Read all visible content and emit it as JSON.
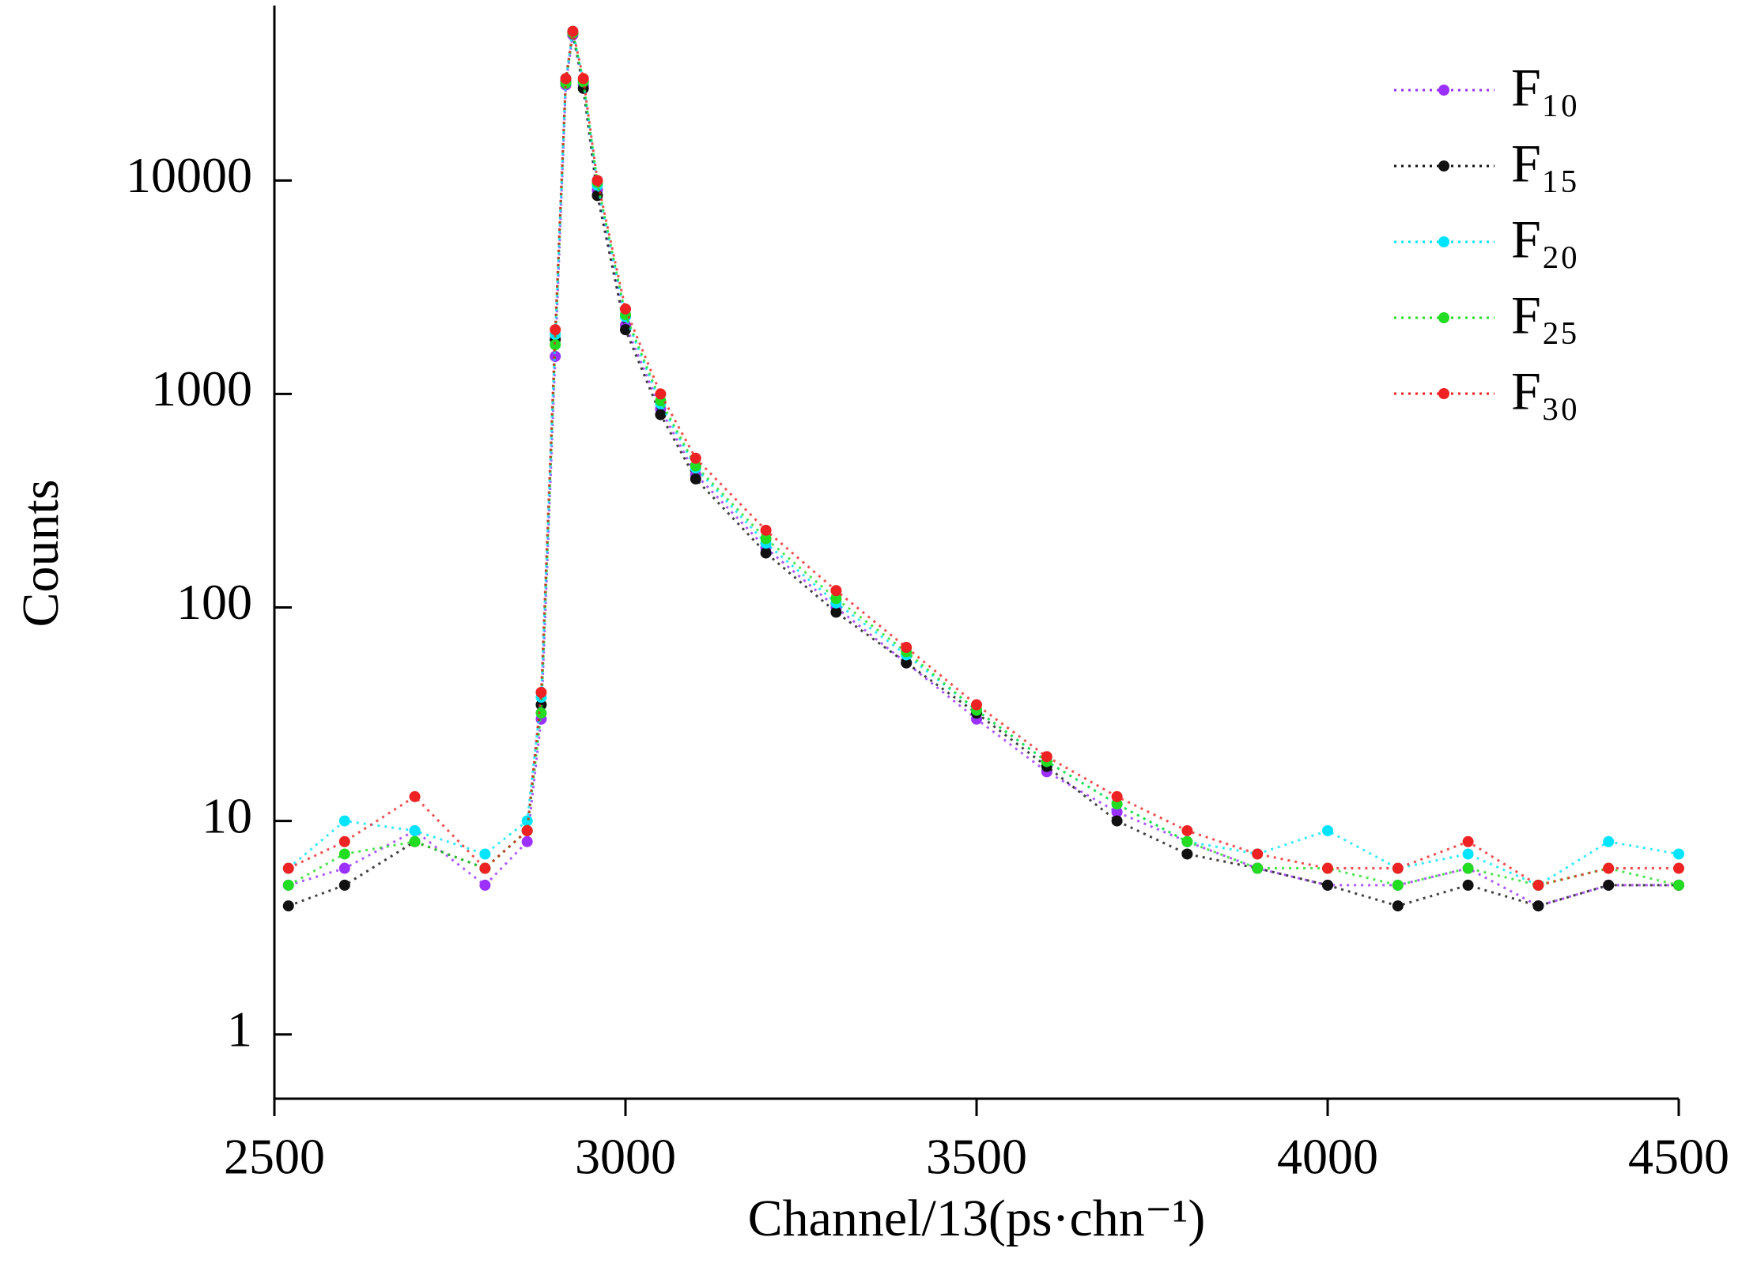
{
  "chart_data": {
    "type": "line",
    "x_label": "Channel/13(ps·chn⁻¹)",
    "y_label": "Counts",
    "x": [
      2520,
      2600,
      2700,
      2800,
      2860,
      2880,
      2900,
      2915,
      2925,
      2940,
      2960,
      3000,
      3050,
      3100,
      3200,
      3300,
      3400,
      3500,
      3600,
      3700,
      3800,
      3900,
      4000,
      4100,
      4200,
      4300,
      4400,
      4500
    ],
    "series": [
      {
        "name": "F₁₀",
        "color": "#9b30ff",
        "values": [
          5,
          6,
          9,
          5,
          8,
          30,
          1500,
          28000,
          48000,
          28000,
          9000,
          2100,
          850,
          420,
          190,
          100,
          55,
          30,
          17,
          11,
          8,
          6,
          5,
          5,
          6,
          4,
          5,
          5
        ]
      },
      {
        "name": "F₁₅",
        "color": "#111111",
        "values": [
          4,
          5,
          8,
          6,
          9,
          35,
          1800,
          29000,
          49000,
          27000,
          8500,
          2000,
          800,
          400,
          180,
          95,
          55,
          32,
          18,
          10,
          7,
          6,
          5,
          4,
          5,
          4,
          5,
          5
        ]
      },
      {
        "name": "F₂₀",
        "color": "#00e5ff",
        "values": [
          6,
          10,
          9,
          7,
          10,
          38,
          1900,
          30000,
          50000,
          29000,
          9500,
          2300,
          900,
          450,
          200,
          105,
          60,
          33,
          19,
          12,
          8,
          7,
          9,
          6,
          7,
          5,
          8,
          7
        ]
      },
      {
        "name": "F₂₅",
        "color": "#22dd22",
        "values": [
          5,
          7,
          8,
          6,
          9,
          32,
          1700,
          28500,
          49000,
          29000,
          9800,
          2350,
          930,
          460,
          210,
          110,
          62,
          33,
          19,
          12,
          8,
          6,
          6,
          5,
          6,
          5,
          6,
          5
        ]
      },
      {
        "name": "F₃₀",
        "color": "#ee2222",
        "values": [
          6,
          8,
          13,
          6,
          9,
          40,
          2000,
          30000,
          50000,
          30000,
          10000,
          2500,
          1000,
          500,
          230,
          120,
          65,
          35,
          20,
          13,
          9,
          7,
          6,
          6,
          8,
          5,
          6,
          6
        ]
      }
    ],
    "xlim": [
      2500,
      4500
    ],
    "xticks": [
      2500,
      3000,
      3500,
      4000,
      4500
    ],
    "ylim": [
      0.5,
      66000
    ],
    "yticks": [
      1,
      10,
      100,
      1000,
      10000
    ],
    "log_y": true,
    "grid": false,
    "legend": "upper right"
  }
}
